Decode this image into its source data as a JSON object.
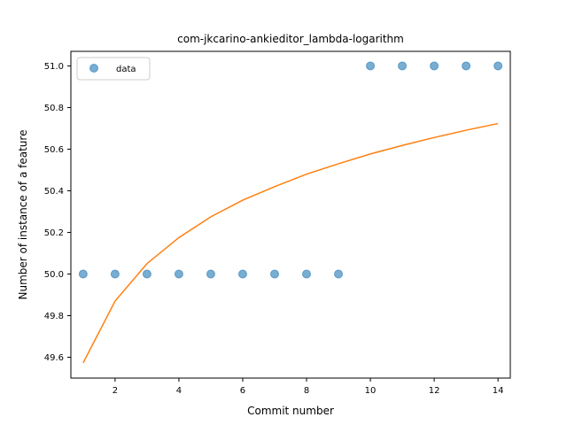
{
  "chart_data": {
    "type": "scatter",
    "title": "com-jkcarino-ankieditor_lambda-logarithm",
    "xlabel": "Commit number",
    "ylabel": "Number of instance of a feature",
    "xlim": [
      0.615,
      14.385
    ],
    "ylim": [
      49.5,
      51.07
    ],
    "xticks": [
      2,
      4,
      6,
      8,
      10,
      12,
      14
    ],
    "yticks": [
      49.6,
      49.8,
      50.0,
      50.2,
      50.4,
      50.6,
      50.8,
      51.0
    ],
    "ytick_labels": [
      "49.6",
      "49.8",
      "50.0",
      "50.2",
      "50.4",
      "50.6",
      "50.8",
      "51.0"
    ],
    "legend_position": "upper-left",
    "grid": false,
    "series": [
      {
        "name": "data",
        "kind": "scatter",
        "color": "#1f77b4",
        "alpha": 0.6,
        "x": [
          1,
          2,
          3,
          4,
          5,
          6,
          7,
          8,
          9,
          10,
          11,
          12,
          13,
          14
        ],
        "y": [
          50.0,
          50.0,
          50.0,
          50.0,
          50.0,
          50.0,
          50.0,
          50.0,
          50.0,
          51.0,
          51.0,
          51.0,
          51.0,
          51.0
        ]
      },
      {
        "kind": "line",
        "color": "#ff7f0e",
        "x": [
          1,
          2,
          3,
          4,
          5,
          6,
          7,
          8,
          9,
          10,
          11,
          12,
          13,
          14
        ],
        "y": [
          49.573,
          49.87,
          50.05,
          50.175,
          50.275,
          50.355,
          50.42,
          50.48,
          50.53,
          50.577,
          50.618,
          50.656,
          50.691,
          50.723
        ]
      }
    ]
  }
}
